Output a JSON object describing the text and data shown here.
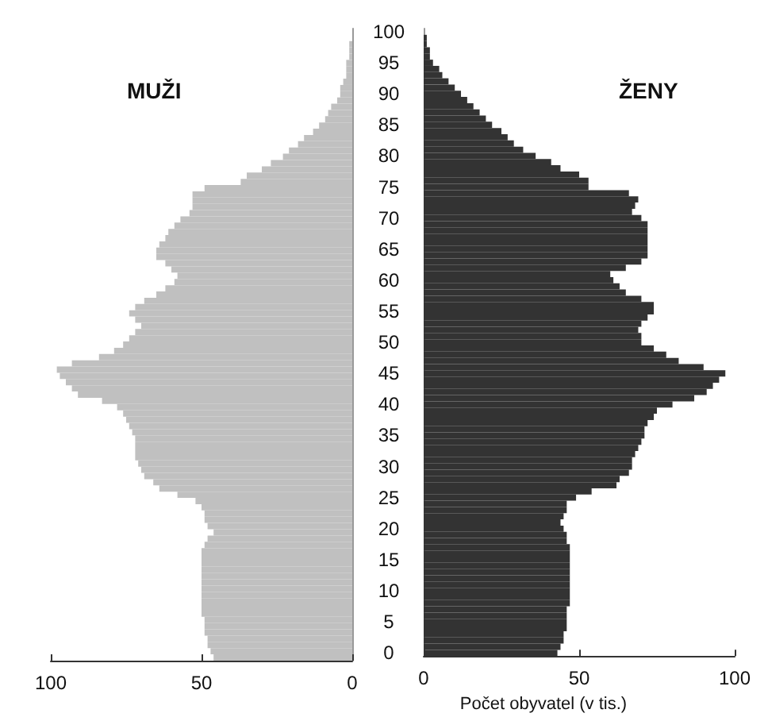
{
  "chart_data": [
    {
      "type": "bar",
      "orientation": "horizontal",
      "annotations": [
        "MUŽI"
      ],
      "tick_labels": "x",
      "categories": [
        "100",
        null,
        null,
        null,
        null,
        "95",
        null,
        null,
        null,
        null,
        "90",
        null,
        null,
        null,
        null,
        "85",
        null,
        null,
        null,
        null,
        "80",
        null,
        null,
        null,
        null,
        "75",
        null,
        null,
        null,
        null,
        "70",
        null,
        null,
        null,
        null,
        "65",
        null,
        null,
        null,
        null,
        "60",
        null,
        null,
        null,
        null,
        "55",
        null,
        null,
        null,
        null,
        "50",
        null,
        null,
        null,
        null,
        "45",
        null,
        null,
        null,
        null,
        "40",
        null,
        null,
        null,
        null,
        "35",
        null,
        null,
        null,
        null,
        "30",
        null,
        null,
        null,
        null,
        "25",
        null,
        null,
        null,
        null,
        "20",
        null,
        null,
        null,
        null,
        "15",
        null,
        null,
        null,
        null,
        "10",
        null,
        null,
        null,
        null,
        "5",
        null,
        null,
        null,
        null,
        "0"
      ],
      "series": [
        {
          "color": "#c0c0c0",
          "values": [
            0,
            0,
            1,
            1,
            1,
            2,
            2,
            2,
            3,
            4,
            4,
            5,
            7,
            8,
            9,
            11,
            13,
            16,
            18,
            21,
            23,
            27,
            30,
            35,
            37,
            49,
            53,
            53,
            53,
            54,
            57,
            59,
            61,
            62,
            64,
            65,
            65,
            62,
            60,
            58,
            59,
            62,
            65,
            69,
            72,
            74,
            72,
            70,
            72,
            74,
            76,
            79,
            84,
            93,
            98,
            97,
            95,
            93,
            91,
            83,
            78,
            76,
            75,
            74,
            73,
            72,
            72,
            72,
            72,
            71,
            70,
            69,
            66,
            64,
            58,
            52,
            50,
            49,
            49,
            48,
            46,
            48,
            49,
            50,
            50,
            50,
            50,
            50,
            50,
            50,
            50,
            50,
            50,
            50,
            49,
            49,
            49,
            48,
            48,
            47,
            46
          ]
        }
      ],
      "xlim": [
        100,
        0
      ],
      "xticks": [
        100,
        50,
        0
      ],
      "grid": false
    },
    {
      "type": "bar",
      "orientation": "horizontal",
      "annotations": [
        "ŽENY"
      ],
      "xlabel": "Počet obyvatel (v tis.)",
      "categories": [
        "100",
        null,
        null,
        null,
        null,
        "95",
        null,
        null,
        null,
        null,
        "90",
        null,
        null,
        null,
        null,
        "85",
        null,
        null,
        null,
        null,
        "80",
        null,
        null,
        null,
        null,
        "75",
        null,
        null,
        null,
        null,
        "70",
        null,
        null,
        null,
        null,
        "65",
        null,
        null,
        null,
        null,
        "60",
        null,
        null,
        null,
        null,
        "55",
        null,
        null,
        null,
        null,
        "50",
        null,
        null,
        null,
        null,
        "45",
        null,
        null,
        null,
        null,
        "40",
        null,
        null,
        null,
        null,
        "35",
        null,
        null,
        null,
        null,
        "30",
        null,
        null,
        null,
        null,
        "25",
        null,
        null,
        null,
        null,
        "20",
        null,
        null,
        null,
        null,
        "15",
        null,
        null,
        null,
        null,
        "10",
        null,
        null,
        null,
        null,
        "5",
        null,
        null,
        null,
        null,
        "0"
      ],
      "series": [
        {
          "color": "#333333",
          "values": [
            0,
            1,
            1,
            2,
            2,
            3,
            5,
            6,
            8,
            10,
            12,
            14,
            16,
            18,
            20,
            22,
            25,
            27,
            29,
            32,
            36,
            41,
            44,
            50,
            53,
            53,
            66,
            69,
            68,
            67,
            70,
            72,
            72,
            72,
            72,
            72,
            72,
            70,
            65,
            60,
            61,
            63,
            65,
            70,
            74,
            74,
            72,
            70,
            69,
            70,
            70,
            74,
            78,
            82,
            90,
            97,
            95,
            93,
            91,
            87,
            80,
            75,
            74,
            72,
            71,
            71,
            70,
            69,
            68,
            67,
            67,
            66,
            63,
            62,
            54,
            49,
            46,
            46,
            45,
            44,
            45,
            46,
            46,
            47,
            47,
            47,
            47,
            47,
            47,
            47,
            47,
            47,
            47,
            46,
            46,
            46,
            46,
            45,
            45,
            44,
            43
          ]
        }
      ],
      "xlim": [
        0,
        100
      ],
      "xticks": [
        0,
        50,
        100
      ],
      "grid": false
    }
  ]
}
